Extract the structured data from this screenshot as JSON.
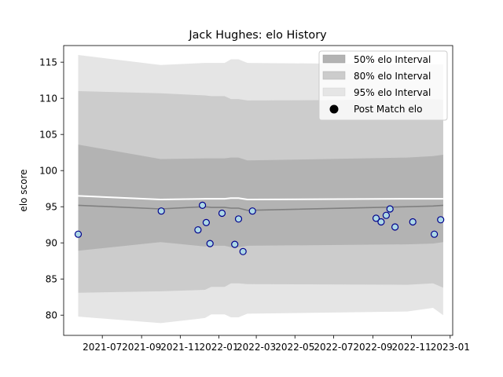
{
  "chart_data": {
    "type": "scatter",
    "title": "Jack Hughes: elo History",
    "xlabel": "",
    "ylabel": "elo score",
    "xlim": [
      "2021-05-01",
      "2023-01-05"
    ],
    "ylim": [
      77.2,
      117.3
    ],
    "x_ticks": [
      "2021-07",
      "2021-09",
      "2021-11",
      "2022-01",
      "2022-03",
      "2022-05",
      "2022-07",
      "2022-09",
      "2022-11",
      "2023-01"
    ],
    "x_tick_dates": [
      "2021-07-01",
      "2021-09-01",
      "2021-11-01",
      "2022-01-01",
      "2022-03-01",
      "2022-05-01",
      "2022-07-01",
      "2022-09-01",
      "2022-11-01",
      "2023-01-01"
    ],
    "y_ticks": [
      80,
      85,
      90,
      95,
      100,
      105,
      110,
      115
    ],
    "grid": false,
    "legend_position": "top-right",
    "legend": [
      "50% elo Interval",
      "80% elo Interval",
      "95% elo Interval",
      "Post Match elo"
    ],
    "colors": {
      "band_50": "#b3b3b3",
      "band_80": "#cccccc",
      "band_95": "#e5e5e5",
      "median_line": "#808080",
      "mean_line": "#ffffff",
      "marker_edge": "#00008b",
      "marker_face": "#add8e6"
    },
    "bands": {
      "dates": [
        "2021-05-24",
        "2021-10-01",
        "2021-12-10",
        "2021-12-20",
        "2022-01-10",
        "2022-01-20",
        "2022-02-01",
        "2022-02-15",
        "2022-10-25",
        "2022-12-05",
        "2022-12-21"
      ],
      "p95_lower": [
        79.8,
        78.9,
        79.6,
        80.1,
        80.1,
        79.7,
        79.7,
        80.2,
        80.5,
        81.0,
        80.0
      ],
      "p95_upper": [
        116.0,
        114.6,
        114.9,
        114.9,
        114.9,
        115.4,
        115.4,
        114.9,
        114.7,
        114.7,
        114.7
      ],
      "p80_lower": [
        83.1,
        83.3,
        83.5,
        83.9,
        83.9,
        84.4,
        84.4,
        84.3,
        84.2,
        84.4,
        83.8
      ],
      "p80_upper": [
        111.0,
        110.7,
        110.4,
        110.3,
        110.3,
        109.9,
        109.9,
        109.7,
        109.8,
        109.9,
        109.8
      ],
      "p50_lower": [
        88.9,
        90.1,
        89.5,
        89.6,
        89.6,
        89.4,
        89.4,
        89.6,
        89.8,
        89.9,
        90.1
      ],
      "p50_upper": [
        103.6,
        101.6,
        101.7,
        101.7,
        101.7,
        101.8,
        101.8,
        101.4,
        101.8,
        102.0,
        102.2
      ],
      "median": [
        95.2,
        94.7,
        95.0,
        94.9,
        94.9,
        94.8,
        94.8,
        94.5,
        95.0,
        95.1,
        95.2
      ],
      "mean": [
        96.5,
        96.0,
        96.1,
        96.1,
        96.1,
        96.2,
        96.2,
        96.0,
        96.1,
        96.1,
        96.1
      ]
    },
    "points": [
      {
        "x": "2021-05-24",
        "y": 91.2
      },
      {
        "x": "2021-10-02",
        "y": 94.4
      },
      {
        "x": "2021-11-29",
        "y": 91.8
      },
      {
        "x": "2021-12-06",
        "y": 95.2
      },
      {
        "x": "2021-12-12",
        "y": 92.8
      },
      {
        "x": "2021-12-18",
        "y": 89.9
      },
      {
        "x": "2022-01-06",
        "y": 94.1
      },
      {
        "x": "2022-01-26",
        "y": 89.8
      },
      {
        "x": "2022-02-01",
        "y": 93.3
      },
      {
        "x": "2022-02-08",
        "y": 88.8
      },
      {
        "x": "2022-02-23",
        "y": 94.4
      },
      {
        "x": "2022-09-06",
        "y": 93.4
      },
      {
        "x": "2022-09-14",
        "y": 92.9
      },
      {
        "x": "2022-09-22",
        "y": 93.8
      },
      {
        "x": "2022-09-28",
        "y": 94.7
      },
      {
        "x": "2022-10-06",
        "y": 92.2
      },
      {
        "x": "2022-11-03",
        "y": 92.9
      },
      {
        "x": "2022-12-07",
        "y": 91.2
      },
      {
        "x": "2022-12-17",
        "y": 93.2
      }
    ]
  }
}
